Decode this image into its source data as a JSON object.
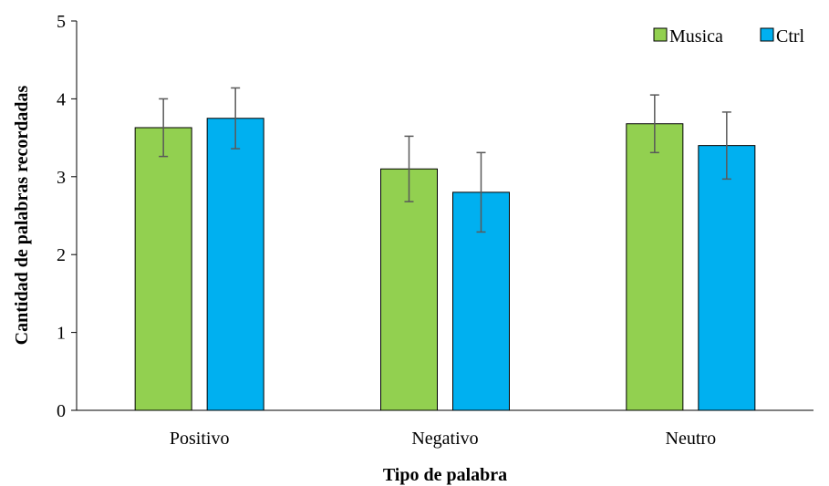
{
  "chart_data": {
    "type": "bar",
    "categories": [
      "Positivo",
      "Negativo",
      "Neutro"
    ],
    "series": [
      {
        "name": "Musica",
        "values": [
          3.63,
          3.1,
          3.68
        ],
        "errors": [
          0.37,
          0.42,
          0.37
        ],
        "color": "#92D050"
      },
      {
        "name": "Ctrl",
        "values": [
          3.75,
          2.8,
          3.4
        ],
        "errors": [
          0.39,
          0.51,
          0.43
        ],
        "color": "#00B0F0"
      }
    ],
    "title": "",
    "xlabel": "Tipo de palabra",
    "ylabel": "Cantidad de palabras recordadas",
    "ylim": [
      0,
      5
    ],
    "yticks": [
      "0",
      "1",
      "2",
      "3",
      "4",
      "5"
    ],
    "grid": false,
    "legend_position": "top-right"
  }
}
